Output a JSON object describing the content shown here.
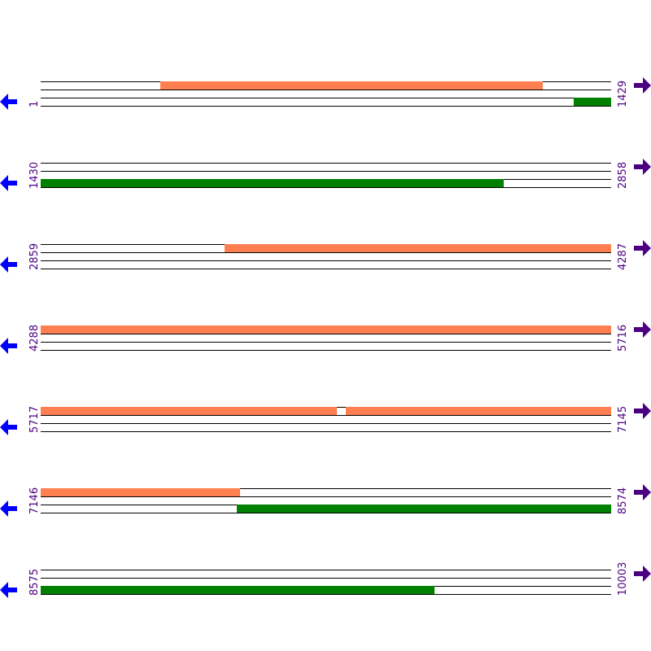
{
  "row_length": 1428,
  "colors": {
    "forward": "#ff7f50",
    "reverse": "#008000",
    "left_arrow": "#0000ff",
    "right_arrow": "#4b0082",
    "label": "#4b0082"
  },
  "icons": {
    "left": "arrow-left-icon",
    "right": "arrow-right-icon"
  },
  "rows": [
    {
      "start": 1,
      "end": 1429,
      "start_label": "1",
      "end_label": "1429",
      "features": [
        {
          "track": "top",
          "start": 300,
          "end": 1257,
          "color": "#ff7f50"
        },
        {
          "track": "bottom",
          "start": 1335,
          "end": 1429,
          "color": "#008000"
        }
      ]
    },
    {
      "start": 1430,
      "end": 2858,
      "start_label": "1430",
      "end_label": "2858",
      "features": [
        {
          "track": "bottom",
          "start": 1430,
          "end": 2589,
          "color": "#008000"
        }
      ]
    },
    {
      "start": 2859,
      "end": 4287,
      "start_label": "2859",
      "end_label": "4287",
      "features": [
        {
          "track": "top",
          "start": 3319,
          "end": 4287,
          "color": "#ff7f50"
        }
      ]
    },
    {
      "start": 4288,
      "end": 5716,
      "start_label": "4288",
      "end_label": "5716",
      "features": [
        {
          "track": "top",
          "start": 4288,
          "end": 5716,
          "color": "#ff7f50"
        }
      ]
    },
    {
      "start": 5717,
      "end": 7145,
      "start_label": "5717",
      "end_label": "7145",
      "features": [
        {
          "track": "top",
          "start": 5717,
          "end": 6458,
          "color": "#ff7f50"
        },
        {
          "track": "top",
          "start": 6481,
          "end": 7145,
          "color": "#ff7f50"
        }
      ]
    },
    {
      "start": 7146,
      "end": 8574,
      "start_label": "7146",
      "end_label": "8574",
      "features": [
        {
          "track": "top",
          "start": 7146,
          "end": 7645,
          "color": "#ff7f50"
        },
        {
          "track": "bottom",
          "start": 7637,
          "end": 8574,
          "color": "#008000"
        }
      ]
    },
    {
      "start": 8575,
      "end": 10003,
      "start_label": "8575",
      "end_label": "10003",
      "features": [
        {
          "track": "bottom",
          "start": 8575,
          "end": 9561,
          "color": "#008000"
        }
      ]
    }
  ]
}
